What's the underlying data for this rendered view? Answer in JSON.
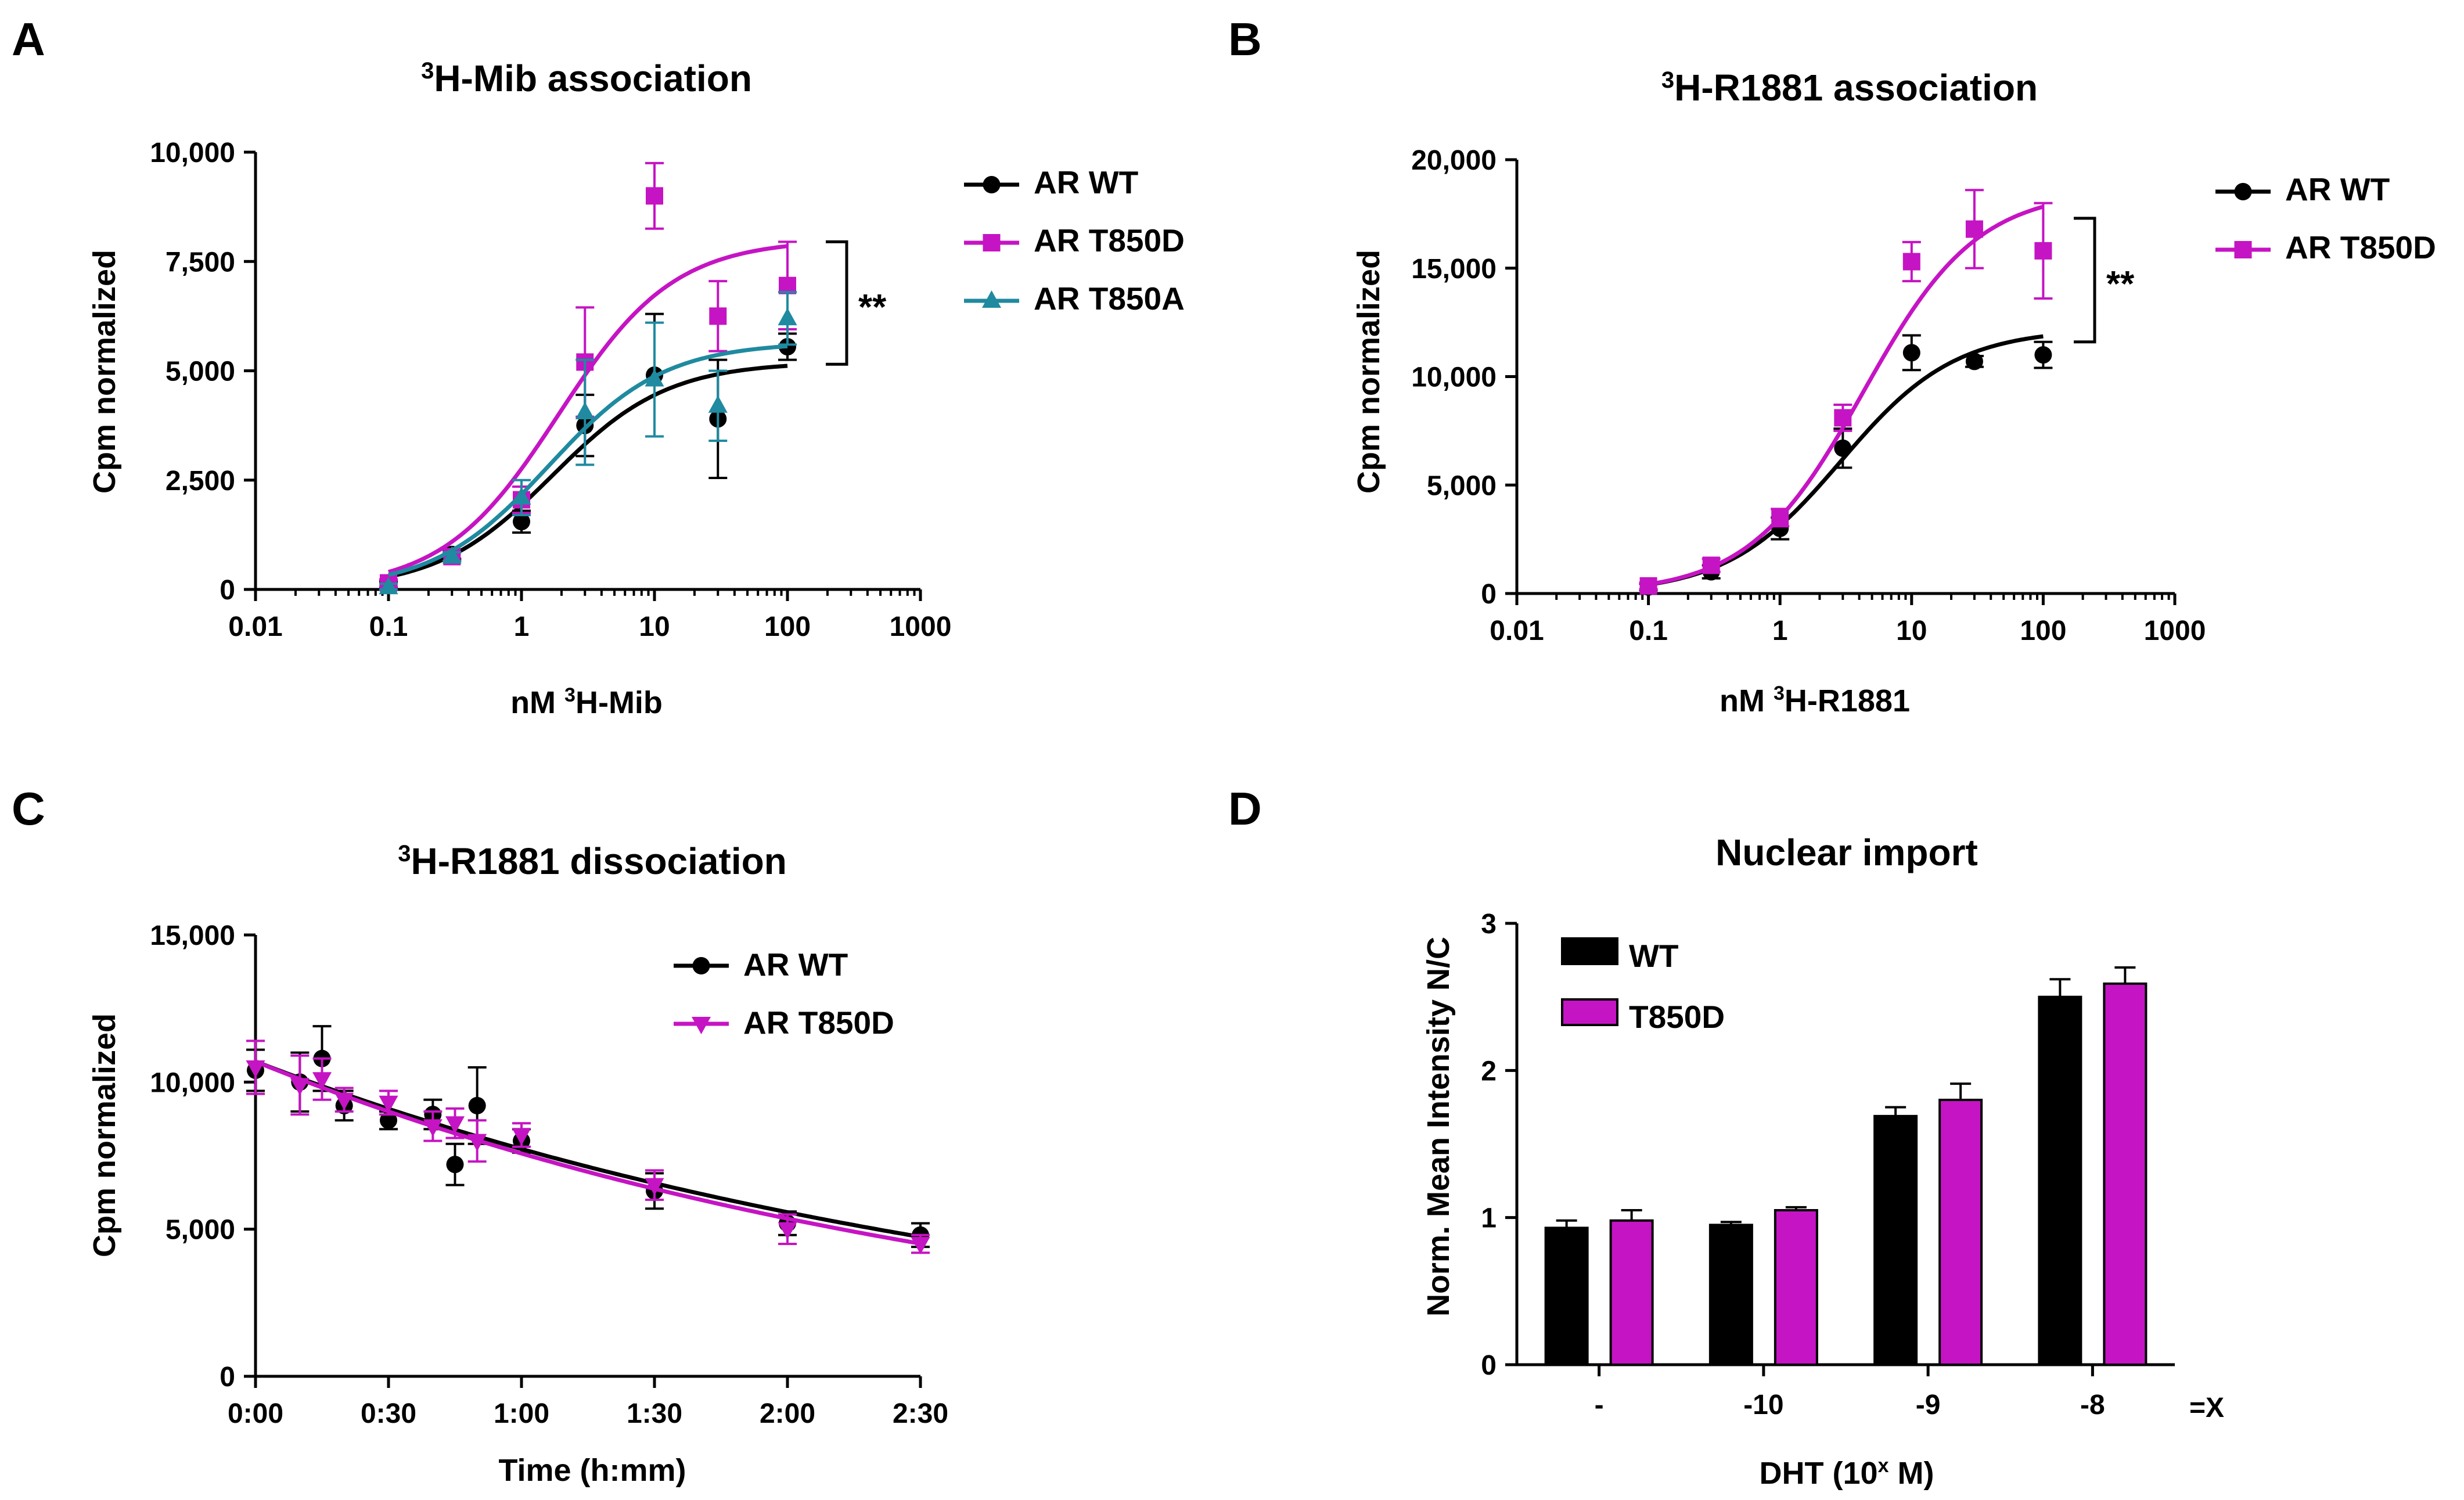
{
  "colors": {
    "wt": "#000000",
    "t850d": "#c514c3",
    "t850a": "#1f8aa0"
  },
  "chart_data": [
    {
      "panel": "A",
      "type": "scatter",
      "title_sup": "3",
      "title_main": "H-Mib association",
      "xlabel_pre": "nM ",
      "xlabel_sup": "3",
      "xlabel_main": "H-Mib",
      "ylabel": "Cpm normalized",
      "xscale": "log",
      "xlim": [
        0.01,
        1000
      ],
      "ylim": [
        0,
        10000
      ],
      "xticks": [
        0.01,
        0.1,
        1,
        10,
        100,
        1000
      ],
      "xtick_labels": [
        "0.01",
        "0.1",
        "1",
        "10",
        "100",
        "1000"
      ],
      "yticks": [
        0,
        2500,
        5000,
        7500,
        10000
      ],
      "ytick_labels": [
        "0",
        "2,500",
        "5,000",
        "7,500",
        "10,000"
      ],
      "significance": "**",
      "series": [
        {
          "name": "AR WT",
          "color_key": "wt",
          "marker": "circle",
          "x": [
            0.1,
            0.3,
            1,
            3,
            10,
            30,
            100
          ],
          "y": [
            100,
            800,
            1550,
            3750,
            4900,
            3900,
            5550
          ],
          "err": [
            80,
            100,
            250,
            700,
            1400,
            1350,
            300
          ],
          "fit": {
            "top": 5200,
            "ec50": 1.7
          }
        },
        {
          "name": "AR T850D",
          "color_key": "t850d",
          "marker": "square",
          "x": [
            0.1,
            0.3,
            1,
            3,
            10,
            30,
            100
          ],
          "y": [
            150,
            750,
            2050,
            5200,
            9000,
            6250,
            6950
          ],
          "err": [
            80,
            100,
            300,
            1250,
            750,
            800,
            1000
          ],
          "fit": {
            "top": 8000,
            "ec50": 1.9
          }
        },
        {
          "name": "AR T850A",
          "color_key": "t850a",
          "marker": "triangle",
          "x": [
            0.1,
            0.3,
            1,
            3,
            10,
            30,
            100
          ],
          "y": [
            50,
            750,
            2100,
            4050,
            4800,
            4200,
            6200
          ],
          "err": [
            80,
            100,
            400,
            1200,
            1300,
            800,
            600
          ],
          "fit": {
            "top": 5650,
            "ec50": 1.6
          }
        }
      ]
    },
    {
      "panel": "B",
      "type": "scatter",
      "title_sup": "3",
      "title_main": "H-R1881 association",
      "xlabel_pre": "nM ",
      "xlabel_sup": "3",
      "xlabel_main": "H-R1881",
      "ylabel": "Cpm normalized",
      "xscale": "log",
      "xlim": [
        0.01,
        1000
      ],
      "ylim": [
        0,
        20000
      ],
      "xticks": [
        0.01,
        0.1,
        1,
        10,
        100,
        1000
      ],
      "xtick_labels": [
        "0.01",
        "0.1",
        "1",
        "10",
        "100",
        "1000"
      ],
      "yticks": [
        0,
        5000,
        10000,
        15000,
        20000
      ],
      "ytick_labels": [
        "0",
        "5,000",
        "10,000",
        "15,000",
        "20,000"
      ],
      "significance": "**",
      "series": [
        {
          "name": "AR WT",
          "color_key": "wt",
          "marker": "circle",
          "x": [
            0.1,
            0.3,
            1,
            3,
            10,
            30,
            100
          ],
          "y": [
            300,
            1000,
            3000,
            6700,
            11100,
            10700,
            11000
          ],
          "err": [
            150,
            300,
            500,
            900,
            800,
            250,
            600
          ],
          "fit": {
            "top": 12200,
            "ec50": 2.9
          }
        },
        {
          "name": "AR T850D",
          "color_key": "t850d",
          "marker": "square",
          "x": [
            0.1,
            0.3,
            1,
            3,
            10,
            30,
            100
          ],
          "y": [
            350,
            1300,
            3500,
            8100,
            15300,
            16800,
            15800
          ],
          "err": [
            150,
            300,
            400,
            600,
            900,
            1800,
            2200
          ],
          "fit": {
            "top": 18600,
            "ec50": 4.3
          }
        }
      ]
    },
    {
      "panel": "C",
      "type": "scatter",
      "title_sup": "3",
      "title_main": "H-R1881 dissociation",
      "xlabel": "Time (h:mm)",
      "ylabel": "Cpm normalized",
      "xlim": [
        0,
        150
      ],
      "ylim": [
        0,
        15000
      ],
      "xticks": [
        0,
        30,
        60,
        90,
        120,
        150
      ],
      "xtick_labels": [
        "0:00",
        "0:30",
        "1:00",
        "1:30",
        "2:00",
        "2:30"
      ],
      "yticks": [
        0,
        5000,
        10000,
        15000
      ],
      "ytick_labels": [
        "0",
        "5,000",
        "10,000",
        "15,000"
      ],
      "series": [
        {
          "name": "AR WT",
          "color_key": "wt",
          "marker": "circle",
          "x": [
            0,
            10,
            15,
            20,
            30,
            40,
            45,
            50,
            60,
            90,
            120,
            150
          ],
          "y": [
            10400,
            10000,
            10800,
            9200,
            8700,
            8900,
            7200,
            9200,
            8000,
            6300,
            5200,
            4800
          ],
          "err": [
            700,
            1000,
            1100,
            500,
            300,
            500,
            700,
            1300,
            400,
            600,
            400,
            400
          ],
          "fit": {
            "y0": 10700,
            "k": 0.00543
          }
        },
        {
          "name": "AR T850D",
          "color_key": "t850d",
          "marker": "triangle-down",
          "x": [
            0,
            10,
            15,
            20,
            30,
            40,
            45,
            50,
            60,
            90,
            120,
            150
          ],
          "y": [
            10500,
            9900,
            10100,
            9400,
            9300,
            8500,
            8600,
            8000,
            8200,
            6500,
            5000,
            4500
          ],
          "err": [
            900,
            1000,
            700,
            400,
            400,
            500,
            500,
            700,
            400,
            500,
            500,
            300
          ],
          "fit": {
            "y0": 10700,
            "k": 0.00576
          }
        }
      ]
    },
    {
      "panel": "D",
      "type": "bar",
      "title": "Nuclear import",
      "xlabel_main": "DHT (10",
      "xlabel_sup": "x",
      "xlabel_end": " M)",
      "ylabel": "Norm. Mean Intensity N/C",
      "categories": [
        "-",
        "-10",
        "-9",
        "-8"
      ],
      "x_suffix": "=X",
      "ylim": [
        0,
        3
      ],
      "yticks": [
        0,
        1,
        2,
        3
      ],
      "ytick_labels": [
        "0",
        "1",
        "2",
        "3"
      ],
      "series": [
        {
          "name": "WT",
          "color_key": "wt",
          "values": [
            0.93,
            0.95,
            1.69,
            2.5
          ],
          "err": [
            0.05,
            0.02,
            0.06,
            0.12
          ]
        },
        {
          "name": "T850D",
          "color_key": "t850d",
          "values": [
            0.98,
            1.05,
            1.8,
            2.59
          ],
          "err": [
            0.07,
            0.02,
            0.11,
            0.11
          ]
        }
      ]
    }
  ]
}
